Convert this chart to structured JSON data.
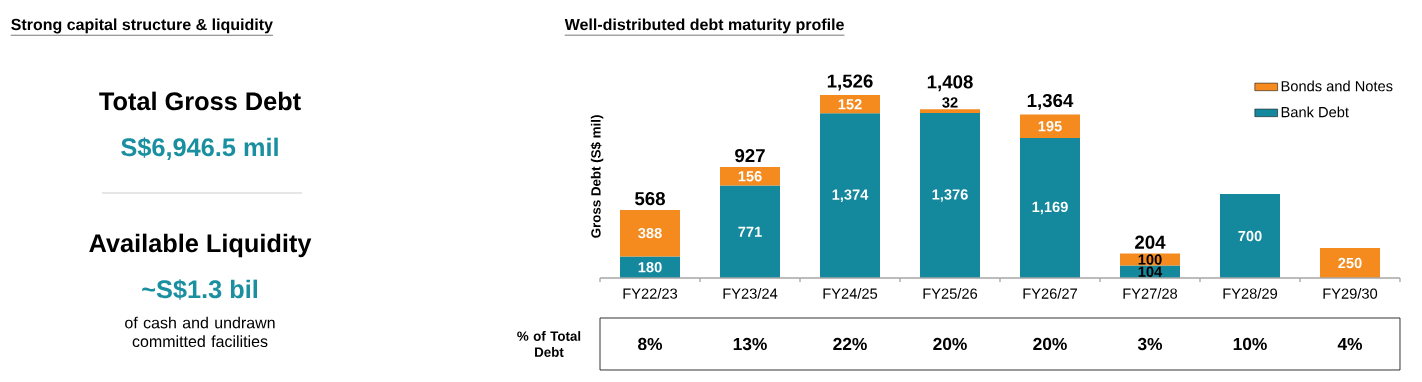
{
  "chart_data": [
    {
      "type": "other",
      "title": "Strong capital structure & liquidity",
      "color": "#1a8fa0",
      "annotations": [
        "Total Gross Debt",
        "S$6,946.5 mil",
        "Available Liquidity",
        "~S$1.3 bil",
        "of cash and undrawn committed facilities"
      ]
    },
    {
      "type": "bar",
      "stacked": true,
      "title": "Well-distributed debt maturity profile",
      "ylabel": "Gross Debt (S$ mil)",
      "categories": [
        "FY22/23",
        "FY23/24",
        "FY24/25",
        "FY25/26",
        "FY26/27",
        "FY27/28",
        "FY28/29",
        "FY29/30"
      ],
      "series": [
        {
          "name": "Bank Debt",
          "color": "#14889c",
          "values": [
            180,
            771,
            1374,
            1376,
            1169,
            104,
            700,
            null
          ],
          "value_labels": [
            "180",
            "771",
            "1,374",
            "1,376",
            "1,169",
            "104",
            "700",
            null
          ]
        },
        {
          "name": "Bonds and Notes",
          "color": "#f58a1f",
          "values": [
            388,
            156,
            152,
            32,
            195,
            100,
            null,
            250
          ],
          "value_labels": [
            "388",
            "156",
            "152",
            "32",
            "195",
            "100",
            null,
            "250"
          ]
        }
      ],
      "totals": [
        "568",
        "927",
        "1,526",
        "1,408",
        "1,364",
        "204",
        null,
        null
      ],
      "legend": "top right",
      "annotations": [
        "% of Total Debt",
        "8%",
        "13%",
        "22%",
        "20%",
        "20%",
        "3%",
        "10%",
        "4%"
      ]
    }
  ]
}
